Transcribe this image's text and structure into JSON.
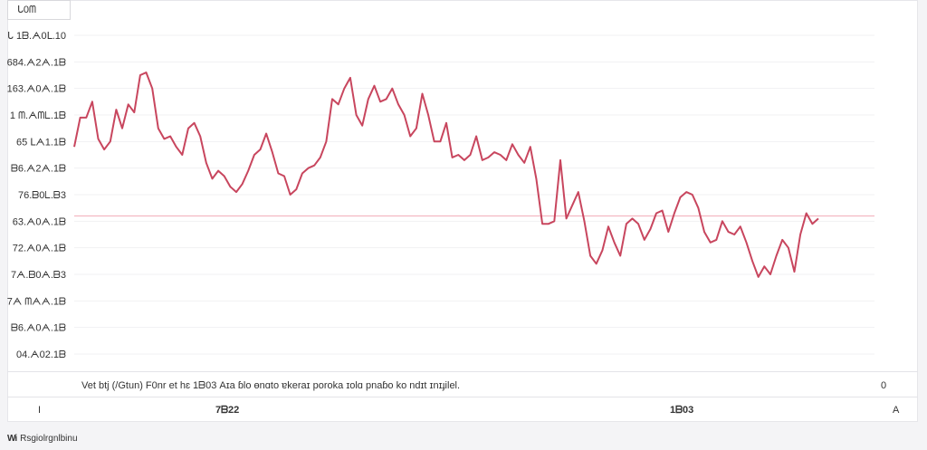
{
  "corner_label": "ᒐ0ᗰ",
  "caption": "Vet btj (/Gtun) F0nr et hɛ 1ᗷ03 Aɪa ɓlo ɵnɑto ɐkeraɪ poroka ɪolɑ pnaɓo ko ndɪt ɪnɪɟilel.",
  "caption_right": "0",
  "left_mark": "I",
  "right_mark": "A",
  "brand": {
    "logo": "Wi",
    "name": "Rsgiolrgnlbinu"
  },
  "chart_data": {
    "type": "line",
    "title": "",
    "y_tick_labels": [
      "ᒐ 1ᗷ.ᗅ0ᒪ.10",
      "684.ᗅ2ᗅ.1ᗷ",
      "163.ᗅ0ᗅ.1ᗷ",
      "1 ᗰ.ᗅᗰᒪ.1ᗷ",
      "65 ᒪᗅ1.1ᗷ",
      "ᗷ6.ᗅ2ᗅ.1ᗷ",
      "76.ᗷ0ᒪ.ᗷ3",
      "63.ᗅ0ᗅ.1ᗷ",
      "72.ᗅ0ᗅ.1ᗷ",
      "7ᗅ.ᗷ0ᗅ.ᗷ3",
      "7ᗅ ᗰᗅᗅ.1ᗷ",
      "ᗷ6.ᗅ0ᗅ.1ᗷ",
      "04.ᗅ02.1ᗷ"
    ],
    "ylim": [
      0,
      12
    ],
    "x_labels": [
      "7ᗷ22",
      "1ᗷ03"
    ],
    "reference_value": 5.2,
    "series": [
      {
        "name": "value",
        "color": "#c8465e",
        "values": [
          7.8,
          8.9,
          8.9,
          9.5,
          8.1,
          7.7,
          8.0,
          9.2,
          8.5,
          9.4,
          9.1,
          10.5,
          10.6,
          10.0,
          8.5,
          8.1,
          8.2,
          7.8,
          7.5,
          8.5,
          8.7,
          8.2,
          7.2,
          6.6,
          6.9,
          6.7,
          6.3,
          6.1,
          6.4,
          6.9,
          7.5,
          7.7,
          8.3,
          7.6,
          6.8,
          6.7,
          6.0,
          6.2,
          6.8,
          7.0,
          7.1,
          7.4,
          8.0,
          9.6,
          9.4,
          10.0,
          10.4,
          9.0,
          8.6,
          9.6,
          10.1,
          9.5,
          9.6,
          10.0,
          9.4,
          9.0,
          8.2,
          8.5,
          9.8,
          9.0,
          8.0,
          8.0,
          8.7,
          7.4,
          7.5,
          7.3,
          7.5,
          8.2,
          7.3,
          7.4,
          7.6,
          7.5,
          7.3,
          7.9,
          7.5,
          7.2,
          7.8,
          6.6,
          4.9,
          4.9,
          5.0,
          7.3,
          5.1,
          5.6,
          6.1,
          5.0,
          3.7,
          3.4,
          3.9,
          4.8,
          4.2,
          3.7,
          4.9,
          5.1,
          4.9,
          4.3,
          4.7,
          5.3,
          5.4,
          4.6,
          5.3,
          5.9,
          6.1,
          6.0,
          5.5,
          4.6,
          4.2,
          4.3,
          5.0,
          4.6,
          4.5,
          4.8,
          4.2,
          3.5,
          2.9,
          3.3,
          3.0,
          3.7,
          4.3,
          4.0,
          3.1,
          4.5,
          5.3,
          4.9,
          5.1
        ]
      }
    ]
  }
}
